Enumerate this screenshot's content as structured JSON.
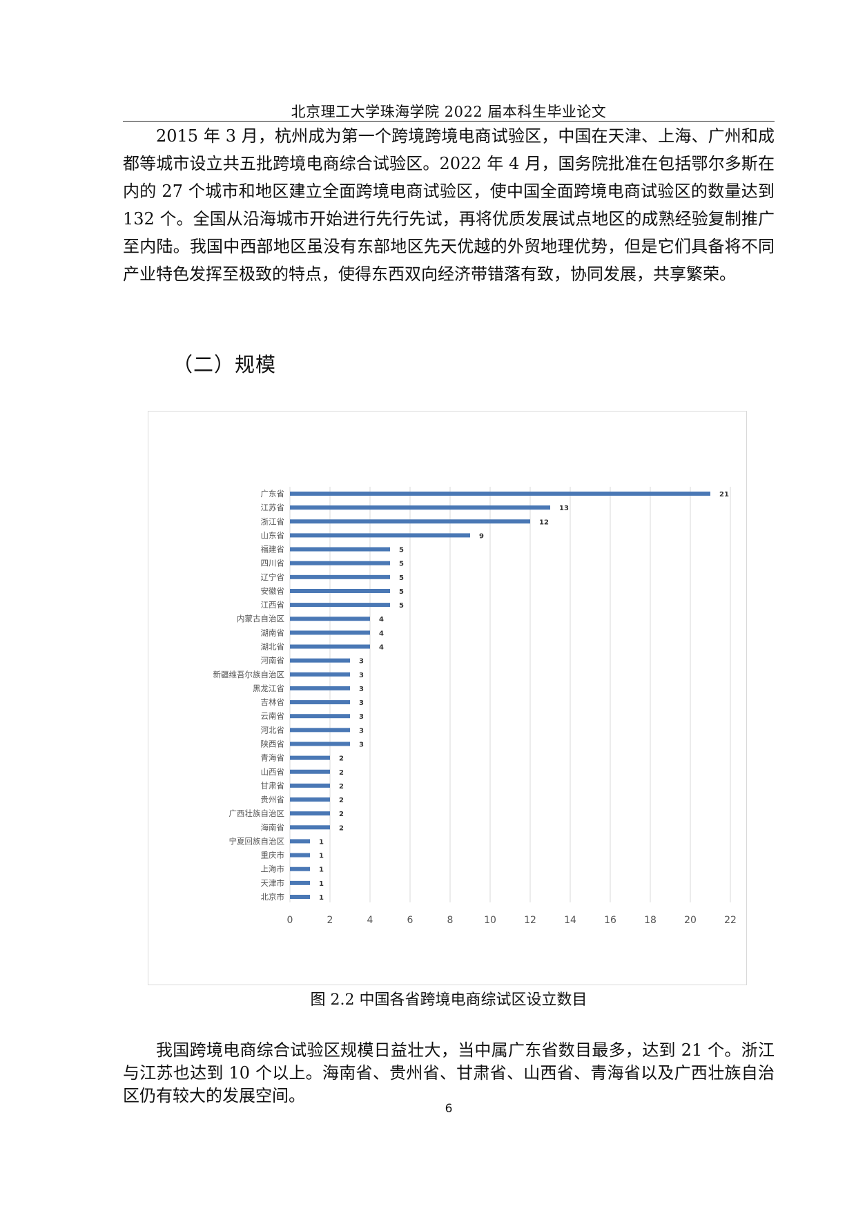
{
  "header": {
    "title": "北京理工大学珠海学院 2022 届本科生毕业论文"
  },
  "body": {
    "paragraph1": "2015 年 3 月，杭州成为第一个跨境跨境电商试验区，中国在天津、上海、广州和成都等城市设立共五批跨境电商综合试验区。2022 年 4 月，国务院批准在包括鄂尔多斯在内的 27 个城市和地区建立全面跨境电商试验区，使中国全面跨境电商试验区的数量达到 132 个。全国从沿海城市开始进行先行先试，再将优质发展试点地区的成熟经验复制推广至内陆。我国中西部地区虽没有东部地区先天优越的外贸地理优势，但是它们具备将不同产业特色发挥至极致的特点，使得东西双向经济带错落有致，协同发展，共享繁荣。",
    "section_heading": "（二）规模",
    "caption": "图 2.2 中国各省跨境电商综试区设立数目",
    "paragraph2": "我国跨境电商综合试验区规模日益壮大，当中属广东省数目最多，达到 21 个。浙江与江苏也达到 10 个以上。海南省、贵州省、甘肃省、山西省、青海省以及广西壮族自治区仍有较大的发展空间。",
    "page_number": "6"
  },
  "chart_data": {
    "type": "bar",
    "orientation": "horizontal",
    "categories": [
      "广东省",
      "江苏省",
      "浙江省",
      "山东省",
      "福建省",
      "四川省",
      "辽宁省",
      "安徽省",
      "江西省",
      "内蒙古自治区",
      "湖南省",
      "湖北省",
      "河南省",
      "新疆维吾尔族自治区",
      "黑龙江省",
      "吉林省",
      "云南省",
      "河北省",
      "陕西省",
      "青海省",
      "山西省",
      "甘肃省",
      "贵州省",
      "广西壮族自治区",
      "海南省",
      "宁夏回族自治区",
      "重庆市",
      "上海市",
      "天津市",
      "北京市"
    ],
    "values": [
      21,
      13,
      12,
      9,
      5,
      5,
      5,
      5,
      5,
      4,
      4,
      4,
      3,
      3,
      3,
      3,
      3,
      3,
      3,
      2,
      2,
      2,
      2,
      2,
      2,
      1,
      1,
      1,
      1,
      1
    ],
    "xlim": [
      0,
      22
    ],
    "xticks": [
      0,
      2,
      4,
      6,
      8,
      10,
      12,
      14,
      16,
      18,
      20,
      22
    ],
    "grid": true,
    "data_labels": true,
    "bar_color": "#4a78b5",
    "grid_color": "#d9d9d9"
  }
}
